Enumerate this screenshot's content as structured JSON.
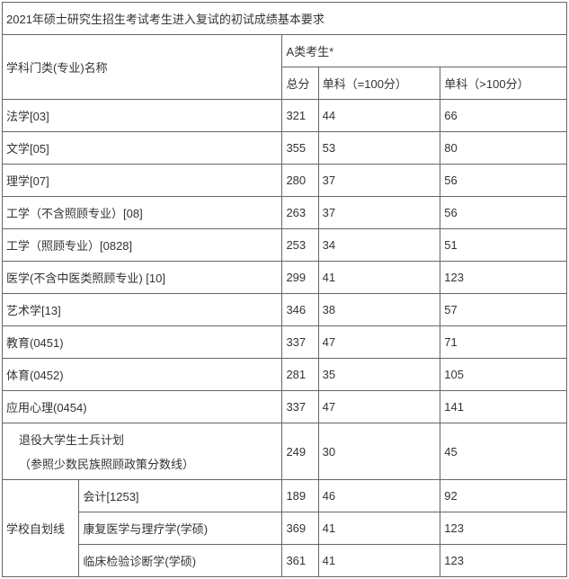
{
  "title": "2021年硕士研究生招生考试考生进入复试的初试成绩基本要求",
  "header": {
    "subject_label": "学科门类(专业)名称",
    "category_label": "A类考生*",
    "col_total": "总分",
    "col_sub_le100": "单科（=100分）",
    "col_sub_gt100": "单科（>100分）"
  },
  "rows": [
    {
      "name": "法学[03]",
      "total": "321",
      "s1": "44",
      "s2": "66"
    },
    {
      "name": "文学[05]",
      "total": "355",
      "s1": "53",
      "s2": "80"
    },
    {
      "name": "理学[07]",
      "total": "280",
      "s1": "37",
      "s2": "56"
    },
    {
      "name": "工学（不含照顾专业）[08]",
      "total": "263",
      "s1": "37",
      "s2": "56"
    },
    {
      "name": "工学（照顾专业）[0828]",
      "total": "253",
      "s1": "34",
      "s2": "51"
    },
    {
      "name": "医学(不含中医类照顾专业) [10]",
      "total": "299",
      "s1": "41",
      "s2": "123"
    },
    {
      "name": "艺术学[13]",
      "total": "346",
      "s1": "38",
      "s2": "57"
    },
    {
      "name": "教育(0451)",
      "total": "337",
      "s1": "47",
      "s2": "71"
    },
    {
      "name": "体育(0452)",
      "total": "281",
      "s1": "35",
      "s2": "105"
    },
    {
      "name": "应用心理(0454)",
      "total": "337",
      "s1": "47",
      "s2": "141"
    }
  ],
  "veteran": {
    "line1": "退役大学生士兵计划",
    "line2": "（参照少数民族照顾政策分数线）",
    "total": "249",
    "s1": "30",
    "s2": "45"
  },
  "school_group": {
    "label": "学校自划线",
    "rows": [
      {
        "name": "会计[1253]",
        "total": "189",
        "s1": "46",
        "s2": "92"
      },
      {
        "name": "康复医学与理疗学(学硕)",
        "total": "369",
        "s1": "41",
        "s2": "123"
      },
      {
        "name": "临床检验诊断学(学硕)",
        "total": "361",
        "s1": "41",
        "s2": "123"
      }
    ]
  },
  "style": {
    "border_color": "#666666",
    "text_color": "#333333",
    "font_size": 13
  }
}
